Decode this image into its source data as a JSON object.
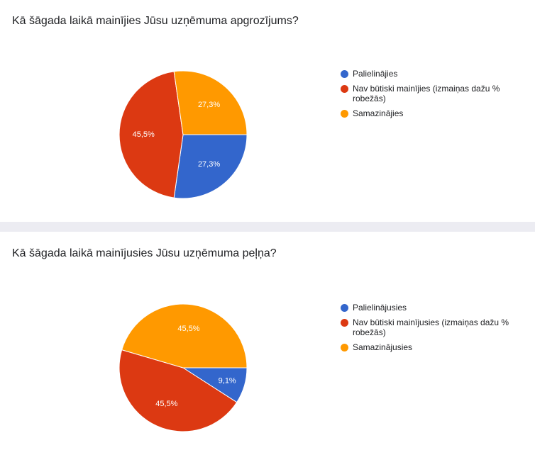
{
  "charts": [
    {
      "question": "Kā šāgada laikā mainījies Jūsu uzņēmuma apgrozījums?",
      "legend": [
        {
          "label": "Palielinājies",
          "color": "#3366cc"
        },
        {
          "label": "Nav būtiski mainījies (izmaiņas dažu % robežās)",
          "color": "#dc3912"
        },
        {
          "label": "Samazinājies",
          "color": "#ff9900"
        }
      ]
    },
    {
      "question": "Kā šāgada laikā mainījusies Jūsu uzņēmuma peļņa?",
      "legend": [
        {
          "label": "Palielinājusies",
          "color": "#3366cc"
        },
        {
          "label": "Nav būtiski mainījusies (izmaiņas dažu % robežās)",
          "color": "#dc3912"
        },
        {
          "label": "Samazinājusies",
          "color": "#ff9900"
        }
      ]
    }
  ],
  "chart_data": [
    {
      "type": "pie",
      "title": "Kā šāgada laikā mainījies Jūsu uzņēmuma apgrozījums?",
      "slices": [
        {
          "label": "Palielinājies",
          "value": 27.3,
          "value_label": "27,3%",
          "color": "#3366cc"
        },
        {
          "label": "Nav būtiski mainījies (izmaiņas dažu % robežās)",
          "value": 45.5,
          "value_label": "45,5%",
          "color": "#dc3912"
        },
        {
          "label": "Samazinājies",
          "value": 27.3,
          "value_label": "27,3%",
          "color": "#ff9900"
        }
      ],
      "legend_position": "right"
    },
    {
      "type": "pie",
      "title": "Kā šāgada laikā mainījusies Jūsu uzņēmuma peļņa?",
      "slices": [
        {
          "label": "Palielinājusies",
          "value": 9.1,
          "value_label": "9,1%",
          "color": "#3366cc"
        },
        {
          "label": "Nav būtiski mainījusies (izmaiņas dažu % robežās)",
          "value": 45.5,
          "value_label": "45,5%",
          "color": "#dc3912"
        },
        {
          "label": "Samazinājusies",
          "value": 45.5,
          "value_label": "45,5%",
          "color": "#ff9900"
        }
      ],
      "legend_position": "right"
    }
  ]
}
